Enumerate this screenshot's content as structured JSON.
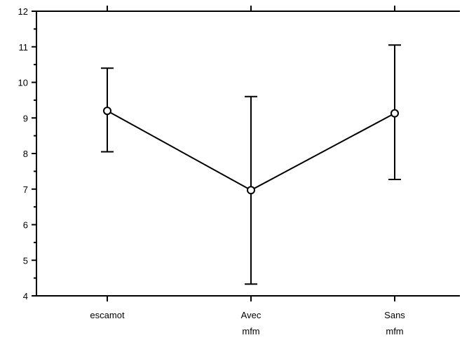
{
  "chart_data": {
    "type": "line",
    "categories": [
      {
        "lines": [
          "escamot"
        ]
      },
      {
        "lines": [
          "Avec",
          "mfm"
        ]
      },
      {
        "lines": [
          "Sans",
          "mfm"
        ]
      }
    ],
    "series": [
      {
        "values": [
          9.2,
          6.97,
          9.13
        ],
        "error_low": [
          8.05,
          4.33,
          7.27
        ],
        "error_high": [
          10.4,
          9.6,
          11.05
        ],
        "marker": "open-circle",
        "color": "#000000"
      }
    ],
    "ylim": [
      4,
      12
    ],
    "yticks": [
      "4",
      "5",
      "6",
      "7",
      "8",
      "9",
      "10",
      "11",
      "12"
    ],
    "y_minor_ticks": true,
    "grid": false,
    "frame": "box"
  }
}
